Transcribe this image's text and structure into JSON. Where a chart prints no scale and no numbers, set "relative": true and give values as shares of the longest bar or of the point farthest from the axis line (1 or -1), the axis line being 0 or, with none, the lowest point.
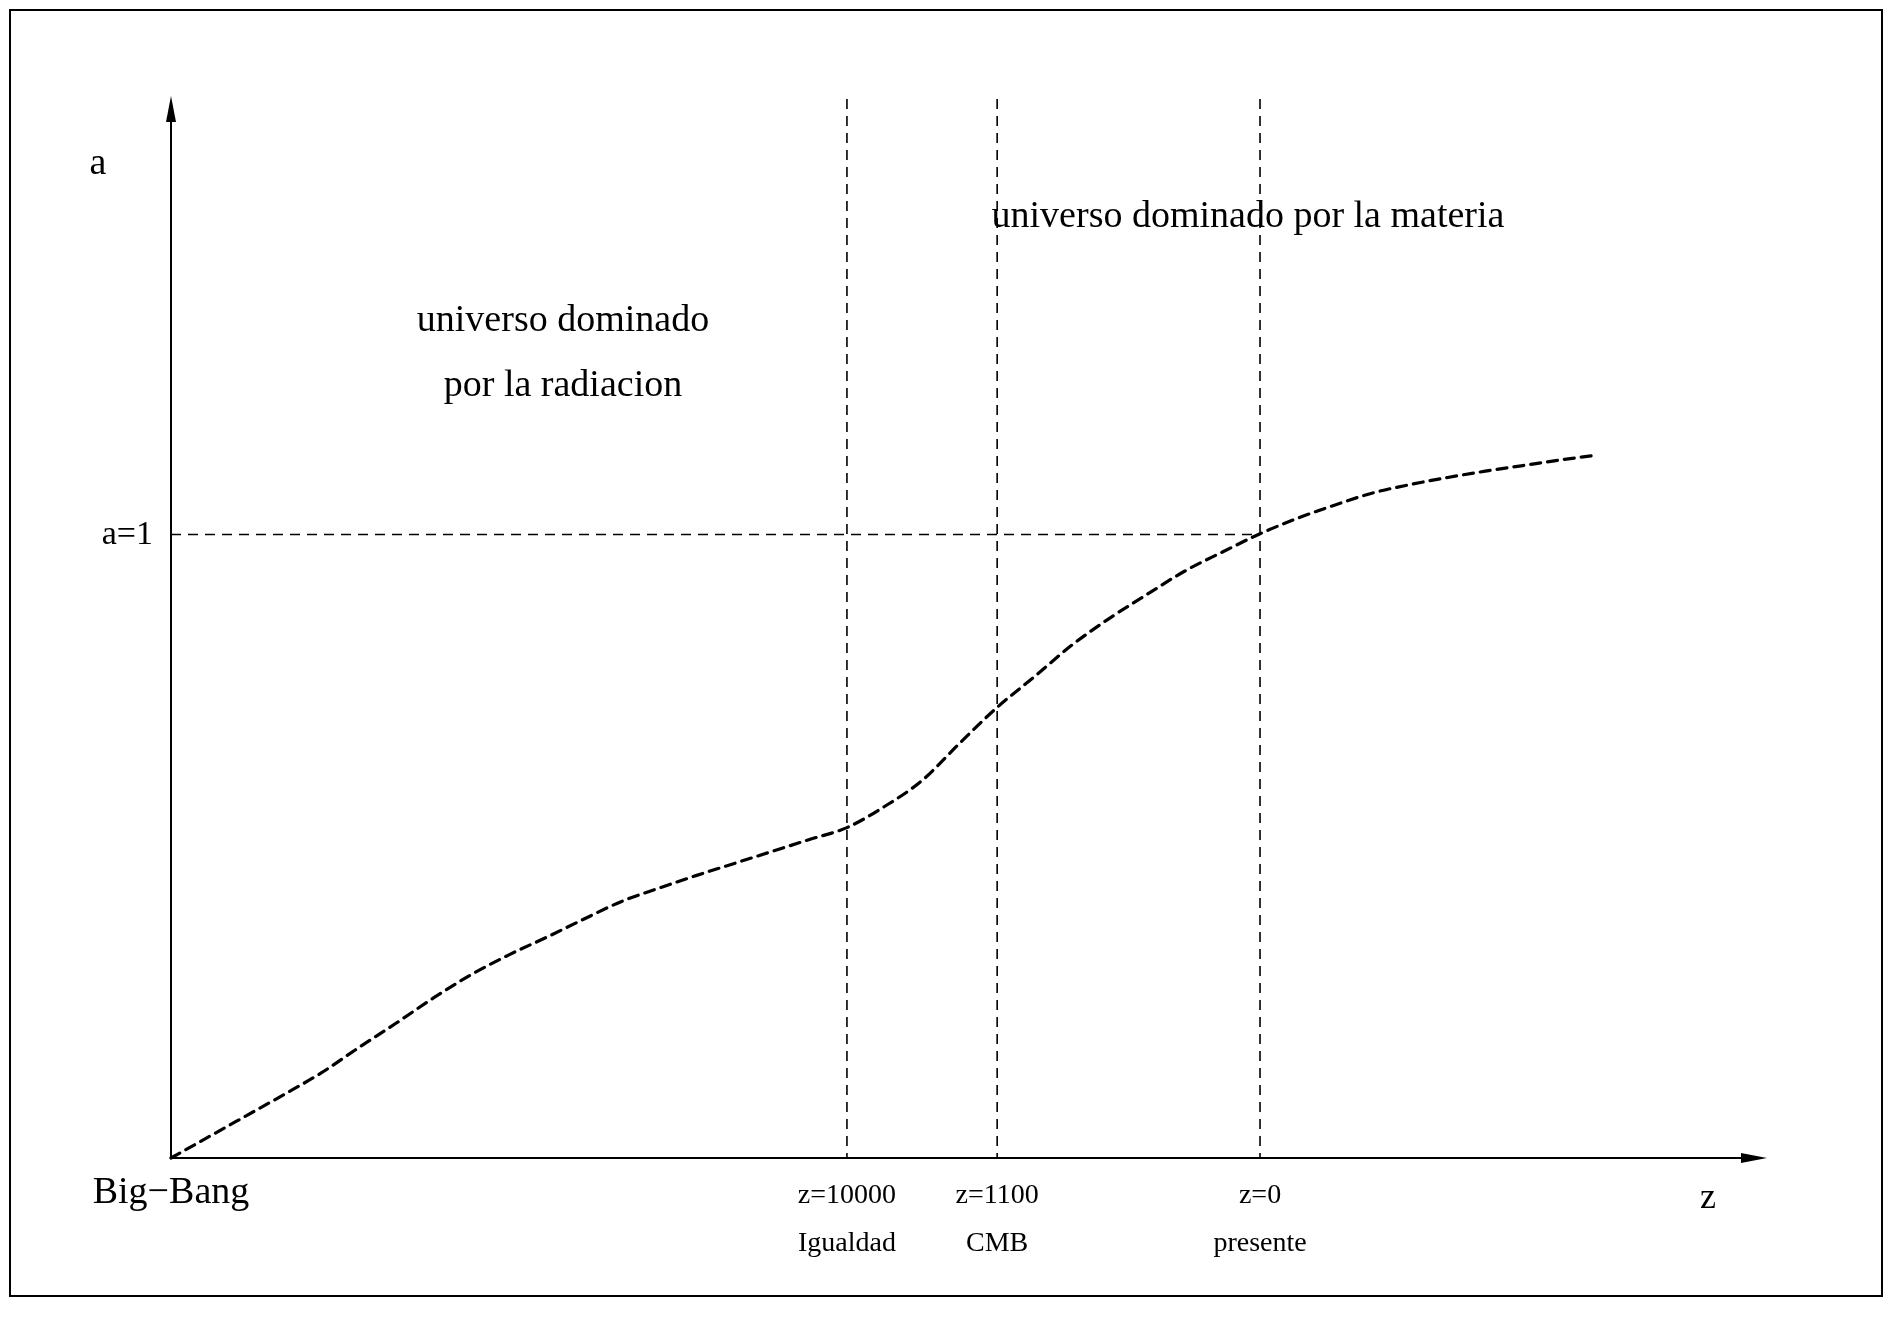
{
  "chart_data": {
    "type": "line",
    "relative": true,
    "xlabel": "z",
    "line_style": "dashed",
    "marker": "none",
    "categories": [
      "Big−Bang",
      null,
      null,
      null,
      null,
      null,
      null,
      null,
      null,
      null,
      null,
      null,
      null,
      null,
      null,
      null,
      null,
      null,
      "z=10000\nIgualdad",
      null,
      null,
      null,
      "z=1100\nCMB",
      null,
      null,
      null,
      null,
      null,
      null,
      "z=0\npresente",
      null,
      null,
      null,
      null,
      null,
      null,
      null,
      null,
      null
    ],
    "series": [
      {
        "color": "#000000",
        "values": [
          0,
          0.03,
          0.06,
          0.09,
          0.121,
          0.157,
          0.192,
          0.228,
          0.261,
          0.289,
          0.314,
          0.34,
          0.365,
          0.384,
          0.402,
          0.419,
          0.436,
          0.453,
          0.47,
          0.5,
          0.537,
          0.59,
          0.641,
          0.685,
          0.73,
          0.768,
          0.802,
          0.835,
          0.862,
          0.888,
          0.91,
          0.929,
          0.946,
          0.958,
          0.968,
          0.977,
          0.985,
          0.993,
          1
        ]
      }
    ],
    "ref_lines": [
      {
        "axis": "y",
        "value": 0.887,
        "label": "a=1",
        "line_style": "dashed"
      },
      {
        "axis": "x",
        "value": "z=10000\nIgualdad",
        "line_style": "dashed"
      },
      {
        "axis": "x",
        "value": "z=1100\nCMB",
        "line_style": "dashed"
      },
      {
        "axis": "x",
        "value": "z=0\npresente",
        "line_style": "dashed"
      }
    ],
    "annotations": [
      "universo dominado\npor la radiacion",
      "universo dominado por la materia",
      "a"
    ]
  }
}
